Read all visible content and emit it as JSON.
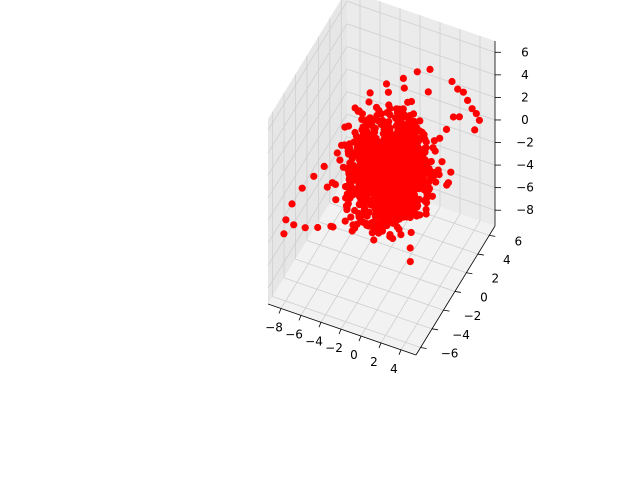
{
  "chart_data": {
    "type": "scatter",
    "projection": "3d",
    "title": "",
    "xlabel": "",
    "ylabel": "",
    "zlabel": "",
    "xlim": [
      -9.3,
      5.5
    ],
    "ylim": [
      -6.8,
      7.0
    ],
    "zlim": [
      -9.4,
      7.0
    ],
    "x_ticks": [
      -8,
      -6,
      -4,
      -2,
      0,
      2,
      4
    ],
    "y_ticks": [
      -6,
      -4,
      -2,
      0,
      2,
      4,
      6
    ],
    "z_ticks": [
      -8,
      -6,
      -4,
      -2,
      0,
      2,
      4,
      6
    ],
    "x_tick_labels": [
      "−8",
      "−6",
      "−4",
      "−2",
      "0",
      "2",
      "4"
    ],
    "y_tick_labels": [
      "−6",
      "−4",
      "−2",
      "0",
      "2",
      "4",
      "6"
    ],
    "z_tick_labels": [
      "−8",
      "−6",
      "−4",
      "−2",
      "0",
      "2",
      "4",
      "6"
    ],
    "grid": true,
    "marker_color": "#ff0000",
    "pane_color": "#f2f2f2",
    "series": [
      {
        "points": [
          [
            -8.4,
            -5.6,
            -3.9
          ],
          [
            -8.6,
            -4.9,
            -3.3
          ],
          [
            -8.5,
            -4.0,
            -2.6
          ],
          [
            -8.0,
            -3.1,
            -1.8
          ],
          [
            -7.3,
            -2.3,
            -1.2
          ],
          [
            -6.6,
            -1.7,
            -0.6
          ],
          [
            -7.3,
            -5.8,
            -2.6
          ],
          [
            -6.1,
            -5.9,
            -2.4
          ],
          [
            -4.9,
            -5.8,
            -2.1
          ],
          [
            -3.7,
            -5.6,
            -1.8
          ],
          [
            -2.5,
            -5.2,
            -1.3
          ],
          [
            -1.5,
            -4.6,
            -0.8
          ],
          [
            -5.9,
            0.6,
            -0.4
          ],
          [
            -6.3,
            1.4,
            0.4
          ],
          [
            -5.8,
            2.3,
            1.5
          ],
          [
            -4.7,
            3.0,
            2.6
          ],
          [
            -3.4,
            3.6,
            3.3
          ],
          [
            -2.0,
            4.1,
            3.8
          ],
          [
            -0.9,
            4.6,
            4.3
          ],
          [
            0.2,
            4.9,
            4.6
          ],
          [
            2.4,
            4.9,
            4.2
          ],
          [
            2.8,
            5.2,
            3.4
          ],
          [
            3.2,
            5.5,
            3.0
          ],
          [
            3.5,
            5.7,
            2.2
          ],
          [
            3.9,
            5.8,
            1.5
          ],
          [
            4.2,
            6.0,
            1.0
          ],
          [
            4.4,
            6.2,
            0.3
          ],
          [
            4.1,
            5.9,
            -0.4
          ],
          [
            -6.0,
            1.5,
            0.5
          ],
          [
            -5.5,
            2.3,
            1.3
          ],
          [
            -4.9,
            1.9,
            1.1
          ],
          [
            -0.8,
            0.2,
            0.5
          ],
          [
            -0.5,
            0.4,
            1.0
          ],
          [
            -0.2,
            0.6,
            1.6
          ],
          [
            0.3,
            0.8,
            1.9
          ],
          [
            0.6,
            1.0,
            1.4
          ],
          [
            1.2,
            -1.5,
            -0.6
          ],
          [
            1.7,
            -1.8,
            -1.2
          ],
          [
            2.4,
            -2.4,
            -1.8
          ],
          [
            2.9,
            -3.1,
            -2.4
          ],
          [
            3.2,
            -3.8,
            -3.1
          ],
          [
            3.5,
            -4.3,
            -3.8
          ],
          [
            2.1,
            -3.5,
            -2.5
          ],
          [
            1.5,
            -3.9,
            -2.7
          ],
          [
            -2.4,
            -4.0,
            -2.6
          ],
          [
            -1.9,
            -3.6,
            -2.2
          ],
          [
            -1.3,
            -3.1,
            -1.9
          ],
          [
            -0.7,
            -2.7,
            -2.3
          ],
          [
            2.6,
            2.4,
            1.3
          ],
          [
            3.0,
            2.9,
            1.8
          ],
          [
            3.4,
            3.4,
            2.6
          ],
          [
            3.6,
            4.1,
            2.1
          ],
          [
            -3.1,
            2.2,
            1.9
          ],
          [
            -2.6,
            2.6,
            2.5
          ],
          [
            -2.0,
            2.9,
            2.1
          ],
          [
            -1.4,
            3.2,
            1.5
          ]
        ],
        "cloud": {
          "count": 1400,
          "center": [
            -1.0,
            0.0,
            -0.5
          ],
          "spread": [
            2.4,
            2.6,
            2.2
          ],
          "clip": [
            [
              -6.3,
              4.3
            ],
            [
              -5.5,
              5.8
            ],
            [
              -6.0,
              5.0
            ]
          ]
        }
      }
    ]
  }
}
